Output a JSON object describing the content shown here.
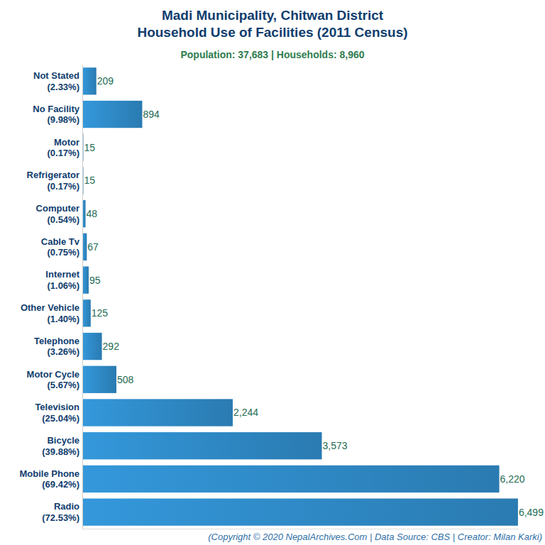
{
  "chart_data": {
    "type": "bar",
    "orientation": "horizontal",
    "title": "Madi Municipality, Chitwan District\nHousehold Use of Facilities (2011 Census)",
    "subtitle": "Population: 37,683 | Households: 8,960",
    "footer": "(Copyright © 2020 NepalArchives.Com | Data Source: CBS | Creator: Milan Karki)",
    "categories": [
      "Not Stated\n(2.33%)",
      "No Facility\n(9.98%)",
      "Motor\n(0.17%)",
      "Refrigerator\n(0.17%)",
      "Computer\n(0.54%)",
      "Cable Tv\n(0.75%)",
      "Internet\n(1.06%)",
      "Other Vehicle\n(1.40%)",
      "Telephone\n(3.26%)",
      "Motor Cycle\n(5.67%)",
      "Television\n(25.04%)",
      "Bicycle\n(39.88%)",
      "Mobile Phone\n(69.42%)",
      "Radio\n(72.53%)"
    ],
    "values": [
      209,
      894,
      15,
      15,
      48,
      67,
      95,
      125,
      292,
      508,
      2244,
      3573,
      6220,
      6499
    ],
    "value_labels": [
      "209",
      "894",
      "15",
      "15",
      "48",
      "67",
      "95",
      "125",
      "292",
      "508",
      "2,244",
      "3,573",
      "6,220",
      "6,499"
    ],
    "data_labels": true,
    "color": "#3498db",
    "xlim": [
      0,
      6500
    ],
    "xticks": [],
    "tick_labels": "y",
    "grid": false
  }
}
